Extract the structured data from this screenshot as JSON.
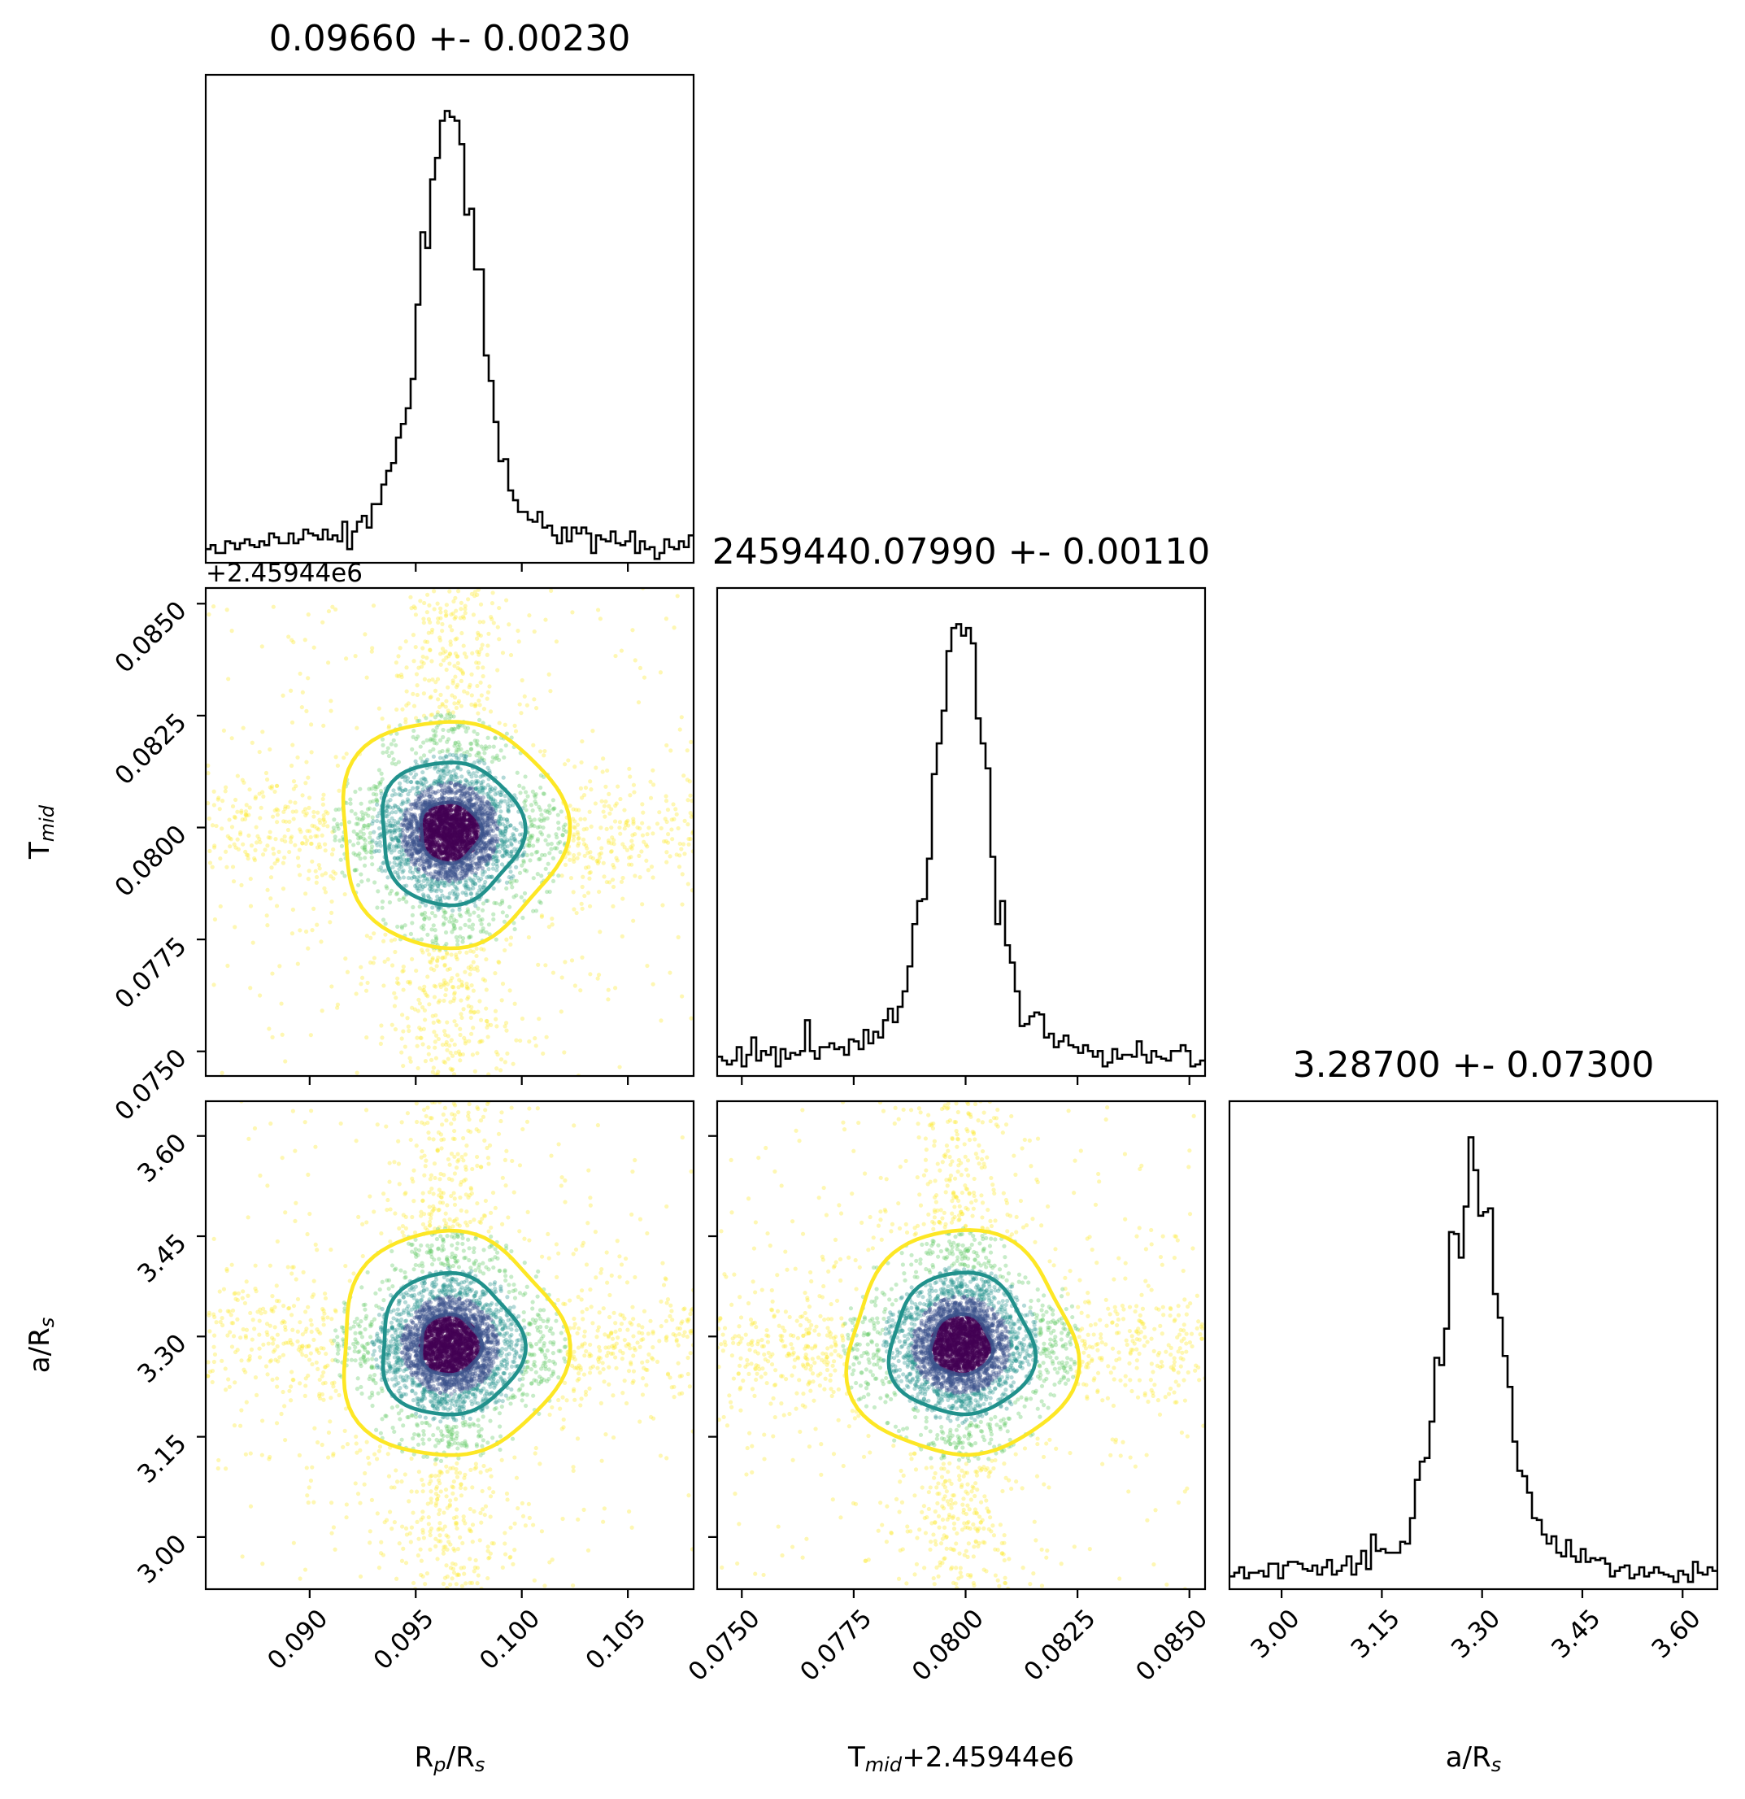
{
  "chart_data": {
    "type": "corner",
    "parameters": [
      {
        "label_main": "R",
        "label_sub1": "p",
        "label_mid": "/R",
        "label_sub2": "s",
        "label_suffix": "",
        "title": "0.09660 +- 0.00230",
        "center": 0.0966,
        "sigma": 0.0023,
        "range": [
          0.0851,
          0.1081
        ],
        "ticks": [
          "0.090",
          "0.095",
          "0.100",
          "0.105"
        ],
        "offset_text": ""
      },
      {
        "label_main": "T",
        "label_sub1": "mid",
        "label_mid": "",
        "label_sub2": "",
        "label_suffix": "+2.45944e6",
        "title": "2459440.07990 +- 0.00110",
        "center": 0.0799,
        "sigma": 0.0011,
        "range": [
          0.07445,
          0.08535
        ],
        "ticks": [
          "0.0750",
          "0.0775",
          "0.0800",
          "0.0825",
          "0.0850"
        ],
        "offset_text": "+2.45944e6"
      },
      {
        "label_main": "a/R",
        "label_sub1": "s",
        "label_mid": "",
        "label_sub2": "",
        "label_suffix": "",
        "title": "3.28700 +- 0.07300",
        "center": 3.287,
        "sigma": 0.073,
        "range": [
          2.922,
          3.652
        ],
        "ticks": [
          "3.00",
          "3.15",
          "3.30",
          "3.45",
          "3.60"
        ],
        "offset_text": ""
      }
    ],
    "ylabels": [
      {
        "main": "T",
        "sub": "mid",
        "tail": ""
      },
      {
        "main": "a/R",
        "sub": "s",
        "tail": ""
      }
    ],
    "contour_colors": [
      "#fde725",
      "#21918c",
      "#3b528b"
    ],
    "scatter_colors": [
      "#440154",
      "#3b528b",
      "#21918c",
      "#5ec962",
      "#fde725"
    ],
    "n_samples": 4500,
    "histogram_bins": 100
  }
}
